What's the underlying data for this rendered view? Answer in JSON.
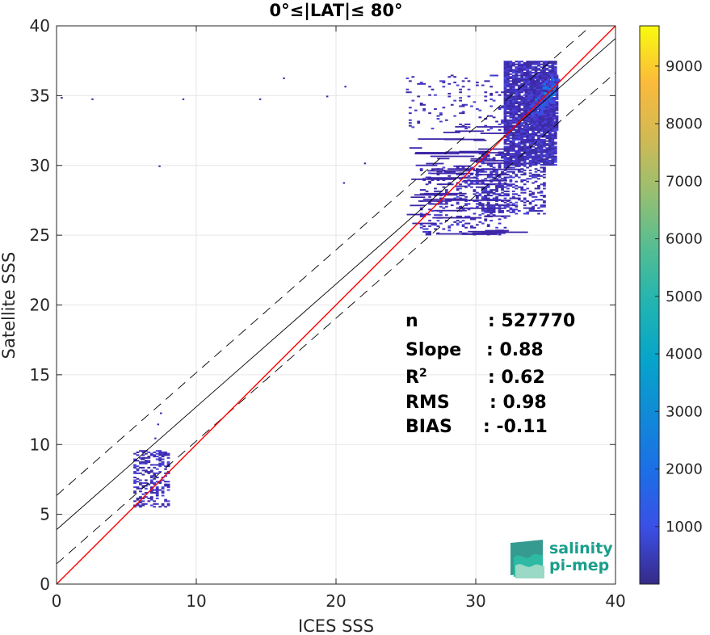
{
  "chart_data": {
    "type": "heatmap",
    "title": "0°≤|LAT|≤ 80°",
    "xlabel": "ICES SSS",
    "ylabel": "Satellite SSS",
    "xlim": [
      0,
      40
    ],
    "ylim": [
      0,
      40
    ],
    "xticks": [
      0,
      10,
      20,
      30,
      40
    ],
    "yticks": [
      0,
      5,
      10,
      15,
      20,
      25,
      30,
      35,
      40
    ],
    "grid": true,
    "colorbar": {
      "ticks": [
        1000,
        2000,
        3000,
        4000,
        5000,
        6000,
        7000,
        8000,
        9000
      ],
      "range": [
        0,
        9700
      ],
      "colormap": "parula"
    },
    "lines": {
      "identity": {
        "slope": 1.0,
        "intercept": 0.0,
        "color": "#ff0000"
      },
      "fit": {
        "slope": 0.88,
        "intercept": 3.9,
        "color": "#000000"
      },
      "fit_upper": {
        "slope": 0.88,
        "intercept": 6.35,
        "color": "#000000",
        "dash": true
      },
      "fit_lower": {
        "slope": 0.88,
        "intercept": 1.45,
        "color": "#000000",
        "dash": true
      }
    },
    "stats": [
      {
        "label": "n",
        "value": ": 527770"
      },
      {
        "label": "Slope",
        "value": ": 0.88"
      },
      {
        "label": "R",
        "sup": "2",
        "value": ": 0.62"
      },
      {
        "label": "RMS",
        "value": ": 0.98"
      },
      {
        "label": "BIAS",
        "value": ": -0.11"
      }
    ],
    "density_clusters": [
      {
        "xmin": 32.0,
        "xmax": 35.8,
        "ymin": 30.0,
        "ymax": 37.5,
        "density": 0.85
      },
      {
        "xmin": 33.5,
        "xmax": 35.8,
        "ymin": 32.5,
        "ymax": 36.5,
        "density": 0.95
      },
      {
        "xmin": 30.0,
        "xmax": 35.0,
        "ymin": 26.5,
        "ymax": 31.0,
        "density": 0.35
      },
      {
        "xmin": 26.0,
        "xmax": 32.0,
        "ymin": 25.0,
        "ymax": 30.0,
        "density": 0.18
      },
      {
        "xmin": 25.0,
        "xmax": 33.0,
        "ymin": 32.5,
        "ymax": 36.5,
        "density": 0.08
      },
      {
        "xmin": 5.5,
        "xmax": 8.0,
        "ymin": 5.5,
        "ymax": 9.5,
        "density": 0.4
      }
    ],
    "hot_spots": [
      {
        "x": 35.2,
        "y": 35.5,
        "value": 3500
      },
      {
        "x": 35.0,
        "y": 34.8,
        "value": 2800
      },
      {
        "x": 34.6,
        "y": 34.5,
        "value": 2200
      },
      {
        "x": 35.4,
        "y": 36.0,
        "value": 2600
      },
      {
        "x": 34.2,
        "y": 34.0,
        "value": 1800
      }
    ],
    "outliers": [
      {
        "x": 0.3,
        "y": 34.9
      },
      {
        "x": 2.5,
        "y": 34.8
      },
      {
        "x": 7.3,
        "y": 30.0
      },
      {
        "x": 9.0,
        "y": 34.8
      },
      {
        "x": 14.5,
        "y": 34.8
      },
      {
        "x": 16.2,
        "y": 36.3
      },
      {
        "x": 19.3,
        "y": 35.0
      },
      {
        "x": 20.6,
        "y": 35.7
      },
      {
        "x": 20.5,
        "y": 28.8
      },
      {
        "x": 22.0,
        "y": 30.2
      },
      {
        "x": 7.2,
        "y": 11.5
      },
      {
        "x": 7.4,
        "y": 12.3
      },
      {
        "x": 7.0,
        "y": 10.5
      },
      {
        "x": 6.0,
        "y": 9.0
      }
    ]
  },
  "logo": {
    "line1": "salinity",
    "line2": "pi-mep"
  }
}
